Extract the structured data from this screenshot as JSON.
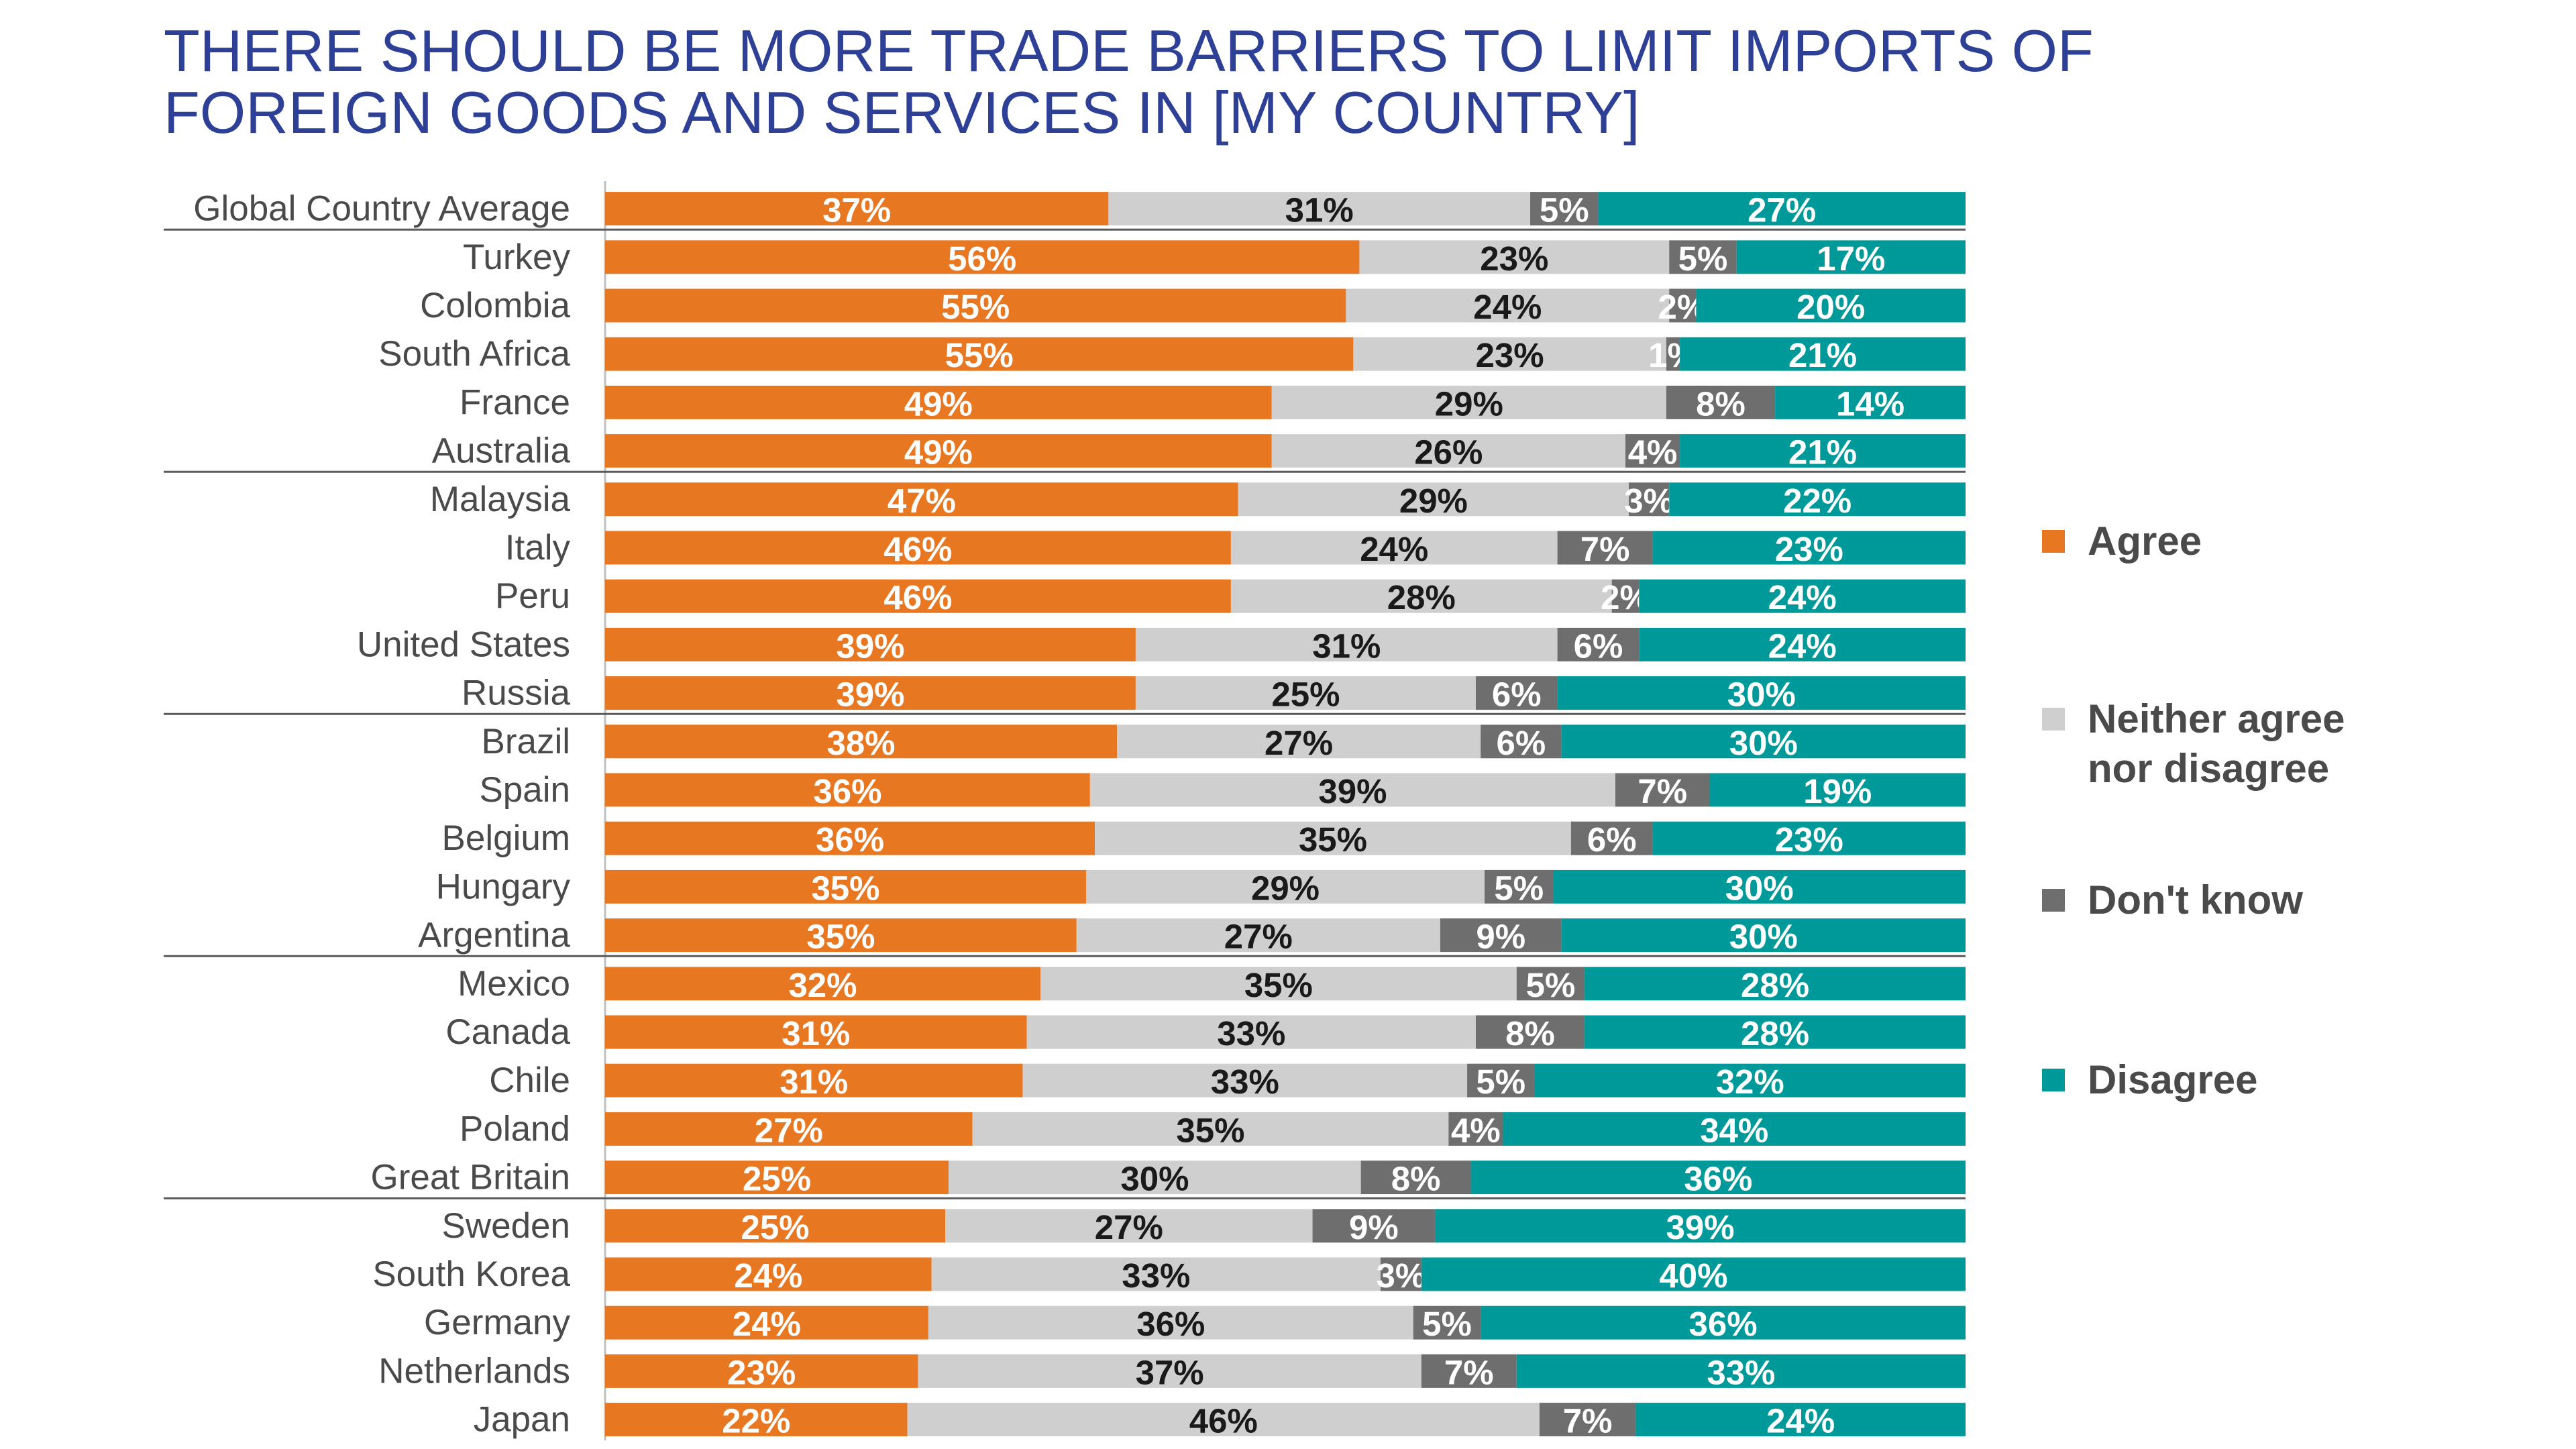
{
  "title": "THERE SHOULD BE MORE TRADE BARRIERS TO LIMIT IMPORTS OF FOREIGN GOODS AND SERVICES IN [MY COUNTRY]",
  "legend": [
    {
      "label": "Agree",
      "color": "#e87722"
    },
    {
      "label": "Neither agree nor disagree",
      "color": "#cfcfcf"
    },
    {
      "label": "Don't know",
      "color": "#6e6e6e"
    },
    {
      "label": "Disagree",
      "color": "#009999"
    }
  ],
  "chart_data": {
    "type": "bar",
    "orientation": "horizontal",
    "stacked": true,
    "value_format": "percent",
    "categories": [
      "Global Country Average",
      "Turkey",
      "Colombia",
      "South Africa",
      "France",
      "Australia",
      "Malaysia",
      "Italy",
      "Peru",
      "United States",
      "Russia",
      "Brazil",
      "Spain",
      "Belgium",
      "Hungary",
      "Argentina",
      "Mexico",
      "Canada",
      "Chile",
      "Poland",
      "Great Britain",
      "Sweden",
      "South Korea",
      "Germany",
      "Netherlands",
      "Japan"
    ],
    "series": [
      {
        "name": "Agree",
        "color": "#e87722",
        "values": [
          37,
          56,
          55,
          55,
          49,
          49,
          47,
          46,
          46,
          39,
          39,
          38,
          36,
          36,
          35,
          35,
          32,
          31,
          31,
          27,
          25,
          25,
          24,
          24,
          23,
          22
        ]
      },
      {
        "name": "Neither agree nor disagree",
        "color": "#cfcfcf",
        "values": [
          31,
          23,
          24,
          23,
          29,
          26,
          29,
          24,
          28,
          31,
          25,
          27,
          39,
          35,
          29,
          27,
          35,
          33,
          33,
          35,
          30,
          27,
          33,
          36,
          37,
          46
        ]
      },
      {
        "name": "Don't know",
        "color": "#6e6e6e",
        "values": [
          5,
          5,
          2,
          1,
          8,
          4,
          3,
          7,
          2,
          6,
          6,
          6,
          7,
          6,
          5,
          9,
          5,
          8,
          5,
          4,
          8,
          9,
          3,
          5,
          7,
          7
        ]
      },
      {
        "name": "Disagree",
        "color": "#009999",
        "values": [
          27,
          17,
          20,
          21,
          14,
          21,
          22,
          23,
          24,
          24,
          30,
          30,
          19,
          23,
          30,
          30,
          28,
          28,
          32,
          34,
          36,
          39,
          40,
          36,
          33,
          24
        ]
      }
    ],
    "group_separators_after": [
      0,
      5,
      10,
      15,
      20
    ],
    "legend_position": "right",
    "grid": false
  }
}
